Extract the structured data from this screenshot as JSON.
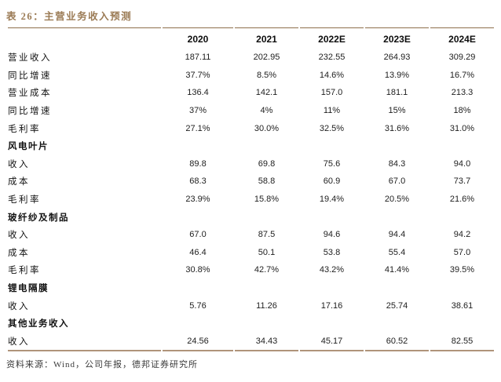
{
  "title": "表 26：主营业务收入预测",
  "colors": {
    "title_brown": "#9b7b55",
    "rule_top": "#8e6f4c",
    "rule_bottom": "#b0947a",
    "body_text": "#1e1e1e"
  },
  "chart_data": {
    "type": "table",
    "title": "表 26：主营业务收入预测",
    "columns": [
      "",
      "2020",
      "2021",
      "2022E",
      "2023E",
      "2024E"
    ],
    "rows": [
      {
        "label": "营业收入",
        "type": "data",
        "values": [
          "187.11",
          "202.95",
          "232.55",
          "264.93",
          "309.29"
        ]
      },
      {
        "label": "同比增速",
        "type": "data",
        "values": [
          "37.7%",
          "8.5%",
          "14.6%",
          "13.9%",
          "16.7%"
        ]
      },
      {
        "label": "营业成本",
        "type": "data",
        "values": [
          "136.4",
          "142.1",
          "157.0",
          "181.1",
          "213.3"
        ]
      },
      {
        "label": "同比增速",
        "type": "data",
        "values": [
          "37%",
          "4%",
          "11%",
          "15%",
          "18%"
        ]
      },
      {
        "label": "毛利率",
        "type": "data",
        "values": [
          "27.1%",
          "30.0%",
          "32.5%",
          "31.6%",
          "31.0%"
        ]
      },
      {
        "label": "风电叶片",
        "type": "section",
        "values": [
          "",
          "",
          "",
          "",
          ""
        ]
      },
      {
        "label": "收入",
        "type": "data",
        "values": [
          "89.8",
          "69.8",
          "75.6",
          "84.3",
          "94.0"
        ]
      },
      {
        "label": "成本",
        "type": "data",
        "values": [
          "68.3",
          "58.8",
          "60.9",
          "67.0",
          "73.7"
        ]
      },
      {
        "label": "毛利率",
        "type": "data",
        "values": [
          "23.9%",
          "15.8%",
          "19.4%",
          "20.5%",
          "21.6%"
        ]
      },
      {
        "label": "玻纤纱及制品",
        "type": "section",
        "values": [
          "",
          "",
          "",
          "",
          ""
        ]
      },
      {
        "label": "收入",
        "type": "data",
        "values": [
          "67.0",
          "87.5",
          "94.6",
          "94.4",
          "94.2"
        ]
      },
      {
        "label": "成本",
        "type": "data",
        "values": [
          "46.4",
          "50.1",
          "53.8",
          "55.4",
          "57.0"
        ]
      },
      {
        "label": "毛利率",
        "type": "data",
        "values": [
          "30.8%",
          "42.7%",
          "43.2%",
          "41.4%",
          "39.5%"
        ]
      },
      {
        "label": "锂电隔膜",
        "type": "section",
        "values": [
          "",
          "",
          "",
          "",
          ""
        ]
      },
      {
        "label": "收入",
        "type": "data",
        "values": [
          "5.76",
          "11.26",
          "17.16",
          "25.74",
          "38.61"
        ]
      },
      {
        "label": "其他业务收入",
        "type": "section",
        "values": [
          "",
          "",
          "",
          "",
          ""
        ]
      },
      {
        "label": "收入",
        "type": "data",
        "values": [
          "24.56",
          "34.43",
          "45.17",
          "60.52",
          "82.55"
        ]
      }
    ]
  },
  "footer": {
    "source": "资料来源：Wind，公司年报，德邦证券研究所"
  }
}
